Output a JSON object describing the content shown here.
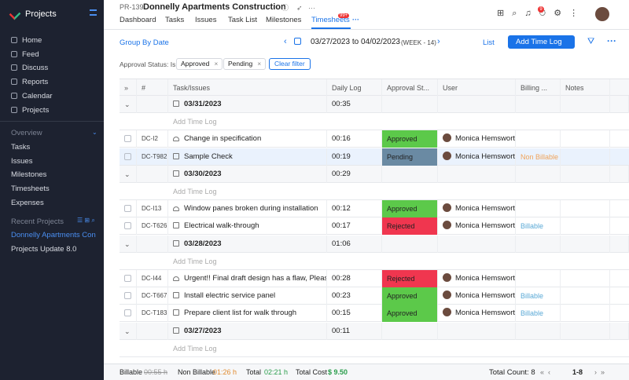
{
  "sidebar": {
    "brand": "Projects",
    "nav": [
      "Home",
      "Feed",
      "Discuss",
      "Reports",
      "Calendar",
      "Projects"
    ],
    "overview": {
      "title": "Overview",
      "items": [
        "Tasks",
        "Issues",
        "Milestones",
        "Timesheets",
        "Expenses"
      ]
    },
    "recent": {
      "title": "Recent Projects",
      "items": [
        "Donnelly Apartments Construction",
        "Projects Update 8.0"
      ],
      "active": 0
    }
  },
  "header": {
    "id": "PR-139",
    "title": "Donnelly Apartments Construction",
    "tabs": [
      "Dashboard",
      "Tasks",
      "Issues",
      "Task List",
      "Milestones",
      "Timesheets"
    ],
    "active_tab": 5,
    "tab_badge": "99+",
    "notification_count": 9
  },
  "toolbar": {
    "group_by": "Group By Date",
    "range": "03/27/2023 to 04/02/2023",
    "week": "(WEEK - 14)",
    "view": "List",
    "add": "Add Time Log"
  },
  "filter": {
    "label": "Approval Status: Is",
    "chips": [
      "Approved",
      "Pending"
    ],
    "clear": "Clear filter"
  },
  "table": {
    "columns": [
      "#",
      "Task/Issues",
      "Daily Log",
      "Approval St...",
      "User",
      "Billing ...",
      "Notes"
    ],
    "add_row": "Add Time Log",
    "groups": [
      {
        "date": "03/31/2023",
        "total": "00:35",
        "entries": [
          {
            "id": "DC-I2",
            "name": "Change in specification",
            "log": "00:16",
            "status": "Approved",
            "user": "Monica Hemsworth"
          },
          {
            "id": "DC-T982",
            "name": "Sample Check",
            "log": "00:19",
            "status": "Pending",
            "user": "Monica Hemsworth",
            "billing": "Non Billable",
            "selected": true
          }
        ]
      },
      {
        "date": "03/30/2023",
        "total": "00:29",
        "entries": [
          {
            "id": "DC-I13",
            "name": "Window panes broken during installation",
            "log": "00:12",
            "status": "Approved",
            "user": "Monica Hemsworth"
          },
          {
            "id": "DC-T626",
            "name": "Electrical walk-through",
            "log": "00:17",
            "status": "Rejected",
            "user": "Monica Hemsworth",
            "billing": "Billable"
          }
        ]
      },
      {
        "date": "03/28/2023",
        "total": "01:06",
        "entries": [
          {
            "id": "DC-I44",
            "name": "Urgent!! Final draft design has a flaw, Pleas...",
            "log": "00:28",
            "status": "Rejected",
            "user": "Monica Hemsworth"
          },
          {
            "id": "DC-T667",
            "name": "Install electric service panel",
            "log": "00:23",
            "status": "Approved",
            "user": "Monica Hemsworth",
            "billing": "Billable"
          },
          {
            "id": "DC-T183",
            "name": "Prepare client list for walk through",
            "log": "00:15",
            "status": "Approved",
            "user": "Monica Hemsworth",
            "billing": "Billable"
          }
        ]
      },
      {
        "date": "03/27/2023",
        "total": "00:11",
        "entries": []
      }
    ]
  },
  "footer": {
    "billable_label": "Billable",
    "billable": "00:55 h",
    "non_billable_label": "Non Billable",
    "non_billable": "01:26 h",
    "total_label": "Total",
    "total": "02:21 h",
    "cost_label": "Total Cost",
    "cost": "$ 9.50",
    "count": "Total Count: 8",
    "page": "1-8"
  }
}
